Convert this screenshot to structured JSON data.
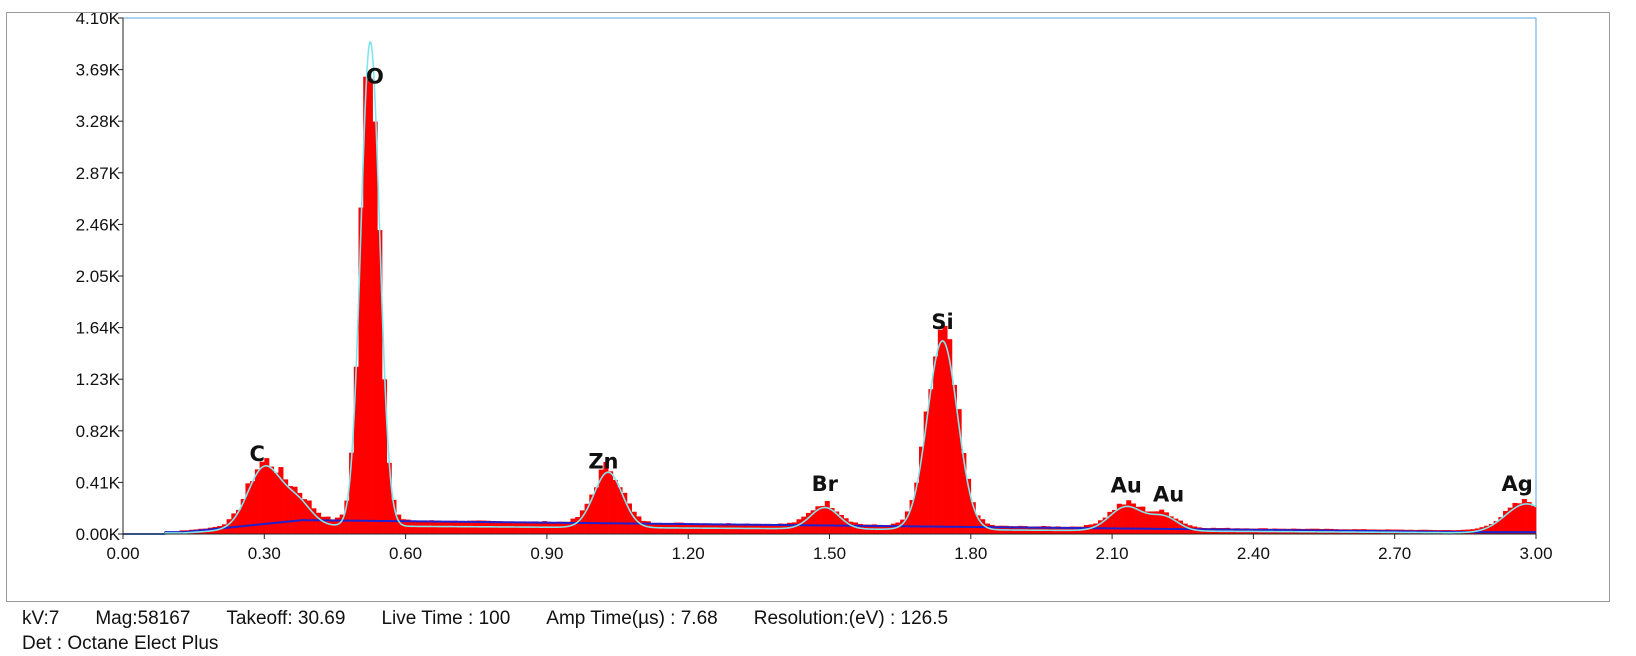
{
  "chart_data": {
    "type": "bar",
    "xlim": [
      0.0,
      3.0
    ],
    "ylim": [
      0,
      4100
    ],
    "x_ticks": [
      "0.00",
      "0.30",
      "0.60",
      "0.90",
      "1.20",
      "1.50",
      "1.80",
      "2.10",
      "2.40",
      "2.70",
      "3.00"
    ],
    "x_tick_values": [
      0.0,
      0.3,
      0.6,
      0.9,
      1.2,
      1.5,
      1.8,
      2.1,
      2.4,
      2.7,
      3.0
    ],
    "y_ticks": [
      "0.00K",
      "0.41K",
      "0.82K",
      "1.23K",
      "1.64K",
      "2.05K",
      "2.46K",
      "2.87K",
      "3.28K",
      "3.69K",
      "4.10K"
    ],
    "y_tick_values": [
      0,
      410,
      820,
      1230,
      1640,
      2050,
      2460,
      2870,
      3280,
      3690,
      4100
    ],
    "peaks": [
      {
        "label": "C",
        "x": 0.3,
        "y": 480,
        "width": 0.035
      },
      {
        "label": "",
        "x": 0.37,
        "y": 180,
        "width": 0.03
      },
      {
        "label": "O",
        "x": 0.525,
        "y": 3850,
        "width": 0.02
      },
      {
        "label": "Zn",
        "x": 1.03,
        "y": 440,
        "width": 0.03
      },
      {
        "label": "Br",
        "x": 1.49,
        "y": 170,
        "width": 0.03
      },
      {
        "label": "Si",
        "x": 1.74,
        "y": 1500,
        "width": 0.032
      },
      {
        "label": "Au",
        "x": 2.13,
        "y": 190,
        "width": 0.035
      },
      {
        "label": "Au",
        "x": 2.21,
        "y": 110,
        "width": 0.03
      },
      {
        "label": "Ag",
        "x": 2.98,
        "y": 230,
        "width": 0.045
      }
    ],
    "label_positions": [
      {
        "label": "C",
        "x": 0.285,
        "y": 580
      },
      {
        "label": "O",
        "x": 0.535,
        "y": 3580
      },
      {
        "label": "Zn",
        "x": 1.02,
        "y": 520
      },
      {
        "label": "Br",
        "x": 1.49,
        "y": 340
      },
      {
        "label": "Si",
        "x": 1.74,
        "y": 1630
      },
      {
        "label": "Au",
        "x": 2.13,
        "y": 330
      },
      {
        "label": "Au",
        "x": 2.22,
        "y": 260
      },
      {
        "label": "Ag",
        "x": 2.96,
        "y": 340
      }
    ],
    "series": [
      {
        "name": "",
        "kind": "spectrum-bars",
        "color": "#ff0000"
      },
      {
        "name": "",
        "kind": "fit-line",
        "color": "#7fe6ee"
      },
      {
        "name": "",
        "kind": "background-line",
        "color": "#2020cc"
      }
    ],
    "grid": false
  },
  "meta": {
    "kv": "kV:7",
    "mag": "Mag:58167",
    "takeoff": "Takeoff: 30.69",
    "live_time": "Live Time : 100",
    "amp_time": "Amp Time(µs) : 7.68",
    "resolution": "Resolution:(eV) : 126.5",
    "detector": "Det : Octane Elect Plus"
  }
}
